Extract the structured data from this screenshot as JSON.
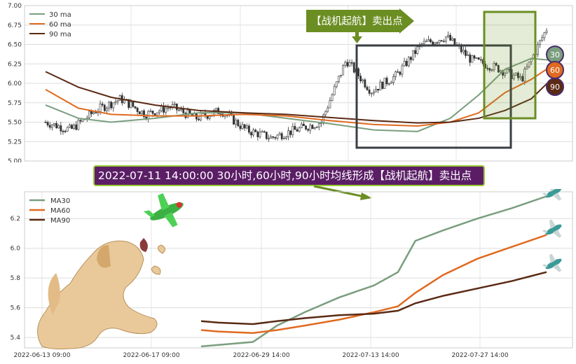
{
  "colors": {
    "ma30": "#7a9e7e",
    "ma60": "#e06a20",
    "ma90": "#5a2a14",
    "candle": "#333333",
    "signal": "#6b8e23",
    "banner_bg": "#5b1e66"
  },
  "banner": {
    "text": "2022-07-11 14:00:00 30小时,60小时,90小时均线形成【战机起航】卖出点"
  },
  "top_chart": {
    "signal_label": "【战机起航】卖出点",
    "badges": [
      "30",
      "60",
      "90"
    ]
  },
  "chart_data": [
    {
      "type": "line",
      "title": "",
      "ylim": [
        5.0,
        7.0
      ],
      "yticks": [
        "5.00",
        "5.25",
        "5.50",
        "5.75",
        "6.00",
        "6.25",
        "6.50",
        "6.75",
        "7.00"
      ],
      "legend": {
        "placement": "top-left",
        "entries": [
          "30 ma",
          "60 ma",
          "90 ma"
        ]
      },
      "grid": true,
      "candles": {
        "count": 230,
        "approx_close_path": [
          5.5,
          5.4,
          5.65,
          5.8,
          5.6,
          5.7,
          5.55,
          5.65,
          5.4,
          5.3,
          5.4,
          5.5,
          6.3,
          5.9,
          6.1,
          6.5,
          6.6,
          6.3,
          6.2,
          6.05,
          6.7
        ]
      },
      "series": [
        {
          "name": "30 ma",
          "x": [
            0,
            15,
            30,
            50,
            70,
            90,
            110,
            130,
            150,
            170,
            185,
            198,
            210,
            222,
            230
          ],
          "y": [
            5.72,
            5.55,
            5.5,
            5.55,
            5.62,
            5.62,
            5.55,
            5.48,
            5.4,
            5.38,
            5.55,
            5.85,
            6.18,
            6.32,
            6.3
          ]
        },
        {
          "name": "60 ma",
          "x": [
            0,
            15,
            30,
            50,
            70,
            90,
            110,
            130,
            150,
            170,
            185,
            198,
            210,
            222,
            230
          ],
          "y": [
            5.92,
            5.68,
            5.6,
            5.58,
            5.58,
            5.6,
            5.58,
            5.52,
            5.47,
            5.45,
            5.5,
            5.62,
            5.88,
            6.05,
            6.2
          ]
        },
        {
          "name": "90 ma",
          "x": [
            0,
            15,
            30,
            50,
            70,
            90,
            110,
            130,
            150,
            170,
            185,
            198,
            210,
            222,
            230
          ],
          "y": [
            6.15,
            5.95,
            5.82,
            5.72,
            5.65,
            5.62,
            5.6,
            5.56,
            5.52,
            5.49,
            5.5,
            5.55,
            5.65,
            5.8,
            6.02
          ]
        }
      ]
    },
    {
      "type": "line",
      "title": "",
      "ylim": [
        5.33,
        6.38
      ],
      "yticks": [
        "5.4",
        "5.6",
        "5.8",
        "6.0",
        "6.2"
      ],
      "xticks": [
        "2022-06-13 09:00",
        "2022-06-17 09:00",
        "2022-06-29 14:00",
        "2022-07-13 14:00",
        "2022-07-27 14:00"
      ],
      "legend": {
        "placement": "top-left",
        "entries": [
          "MA30",
          "MA60",
          "MA90"
        ]
      },
      "grid": true,
      "series": [
        {
          "name": "MA30",
          "x": [
            0,
            0.05,
            0.15,
            0.22,
            0.3,
            0.4,
            0.5,
            0.57,
            0.62,
            0.7,
            0.8,
            0.9,
            1.0
          ],
          "y": [
            5.34,
            5.35,
            5.37,
            5.48,
            5.57,
            5.67,
            5.75,
            5.84,
            6.05,
            6.12,
            6.2,
            6.27,
            6.35
          ]
        },
        {
          "name": "MA60",
          "x": [
            0,
            0.05,
            0.15,
            0.22,
            0.3,
            0.4,
            0.5,
            0.57,
            0.62,
            0.7,
            0.8,
            0.9,
            1.0
          ],
          "y": [
            5.45,
            5.44,
            5.43,
            5.45,
            5.48,
            5.52,
            5.57,
            5.61,
            5.7,
            5.82,
            5.93,
            6.01,
            6.09
          ]
        },
        {
          "name": "MA90",
          "x": [
            0,
            0.05,
            0.15,
            0.22,
            0.3,
            0.4,
            0.5,
            0.57,
            0.62,
            0.7,
            0.8,
            0.9,
            1.0
          ],
          "y": [
            5.51,
            5.5,
            5.49,
            5.51,
            5.53,
            5.55,
            5.56,
            5.58,
            5.63,
            5.68,
            5.73,
            5.78,
            5.84
          ]
        }
      ]
    }
  ]
}
